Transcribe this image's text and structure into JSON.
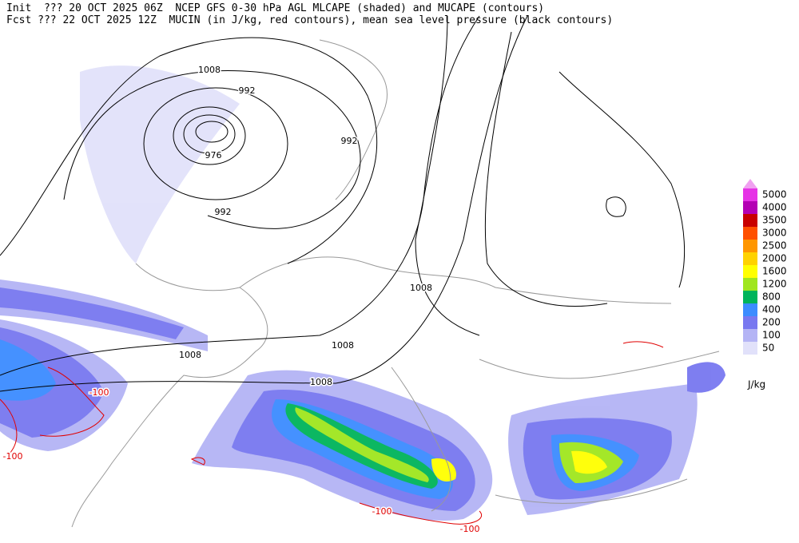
{
  "header": {
    "line1": "Init  ??? 20 OCT 2025 06Z  NCEP GFS 0-30 hPa AGL MLCAPE (shaded) and MUCAPE (contours)",
    "line2": "Fcst ??? 22 OCT 2025 12Z  MUCIN (in J/kg, red contours), mean sea level pressure (black contours)"
  },
  "pressure_labels": [
    "1008",
    "992",
    "976",
    "992",
    "992",
    "1008",
    "1008",
    "1008",
    "1008"
  ],
  "cin_labels": [
    "-100",
    "-100",
    "-100",
    "-100"
  ],
  "legend": {
    "levels": [
      {
        "label": "5000",
        "color": "#e633e6"
      },
      {
        "label": "4000",
        "color": "#b400b4"
      },
      {
        "label": "3500",
        "color": "#c80000"
      },
      {
        "label": "3000",
        "color": "#ff5000"
      },
      {
        "label": "2500",
        "color": "#ff9600"
      },
      {
        "label": "2000",
        "color": "#ffd200"
      },
      {
        "label": "1600",
        "color": "#ffff00"
      },
      {
        "label": "1200",
        "color": "#a0e61e"
      },
      {
        "label": "800",
        "color": "#00b45a"
      },
      {
        "label": "400",
        "color": "#3c8cff"
      },
      {
        "label": "200",
        "color": "#7878f0"
      },
      {
        "label": "100",
        "color": "#b4b4f5"
      },
      {
        "label": "50",
        "color": "#e1e1fa"
      }
    ],
    "top_color": "#f0a0f0",
    "units": "J/kg"
  }
}
